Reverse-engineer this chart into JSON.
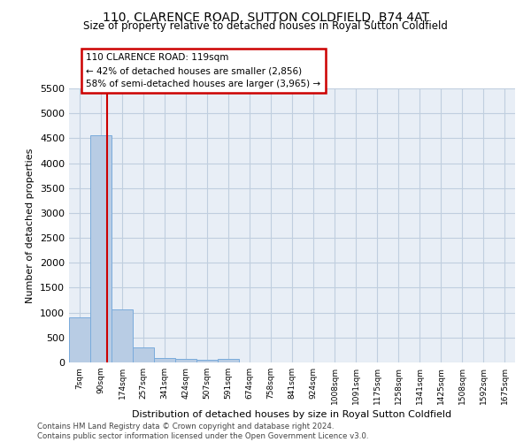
{
  "title": "110, CLARENCE ROAD, SUTTON COLDFIELD, B74 4AT",
  "subtitle": "Size of property relative to detached houses in Royal Sutton Coldfield",
  "xlabel": "Distribution of detached houses by size in Royal Sutton Coldfield",
  "ylabel": "Number of detached properties",
  "footer_line1": "Contains HM Land Registry data © Crown copyright and database right 2024.",
  "footer_line2": "Contains public sector information licensed under the Open Government Licence v3.0.",
  "categories": [
    "7sqm",
    "90sqm",
    "174sqm",
    "257sqm",
    "341sqm",
    "424sqm",
    "507sqm",
    "591sqm",
    "674sqm",
    "758sqm",
    "841sqm",
    "924sqm",
    "1008sqm",
    "1091sqm",
    "1175sqm",
    "1258sqm",
    "1341sqm",
    "1425sqm",
    "1508sqm",
    "1592sqm",
    "1675sqm"
  ],
  "values": [
    900,
    4560,
    1060,
    300,
    80,
    70,
    50,
    70,
    0,
    0,
    0,
    0,
    0,
    0,
    0,
    0,
    0,
    0,
    0,
    0,
    0
  ],
  "bar_color": "#b8cce4",
  "bar_edge_color": "#7aabdb",
  "ylim": [
    0,
    5500
  ],
  "yticks": [
    0,
    500,
    1000,
    1500,
    2000,
    2500,
    3000,
    3500,
    4000,
    4500,
    5000,
    5500
  ],
  "red_line_x": 1.3,
  "annotation_text": "110 CLARENCE ROAD: 119sqm\n← 42% of detached houses are smaller (2,856)\n58% of semi-detached houses are larger (3,965) →",
  "annotation_box_edgecolor": "#cc0000",
  "grid_color": "#c0cedf",
  "bg_color": "#e8eef6"
}
